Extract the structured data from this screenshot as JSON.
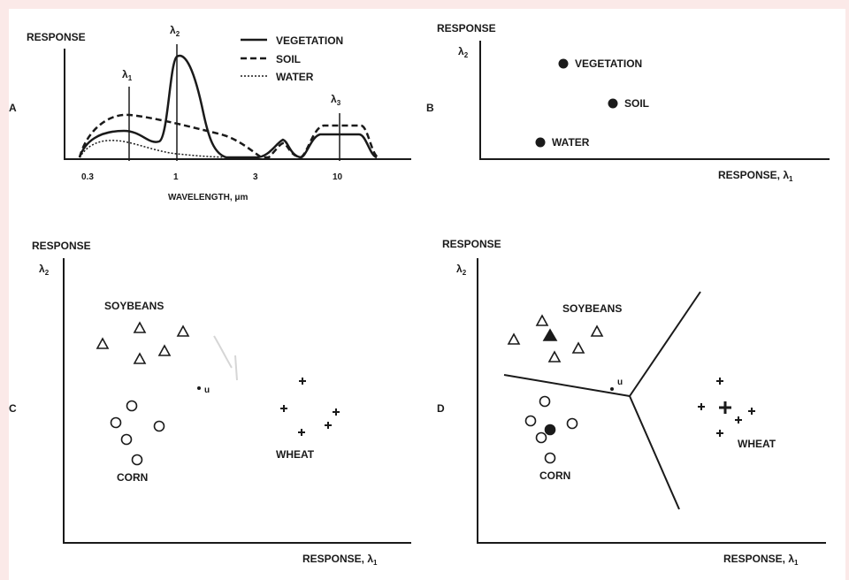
{
  "panels": {
    "a": {
      "letter": "A",
      "ylabel": "RESPONSE",
      "xlabel": "WAVELENGTH, μm",
      "ticks": [
        "0.3",
        "1",
        "3",
        "10"
      ],
      "markers": [
        {
          "symbol": "λ",
          "sub": "1"
        },
        {
          "symbol": "λ",
          "sub": "2"
        },
        {
          "symbol": "λ",
          "sub": "3"
        }
      ],
      "legend": [
        "VEGETATION",
        "SOIL",
        "WATER"
      ]
    },
    "b": {
      "letter": "B",
      "ylabel": "RESPONSE",
      "ysub_symbol": "λ",
      "ysub": "2",
      "xlabel": "RESPONSE, λ",
      "xsub": "1",
      "points": [
        {
          "label": "VEGETATION"
        },
        {
          "label": "SOIL"
        },
        {
          "label": "WATER"
        }
      ]
    },
    "c": {
      "letter": "C",
      "ylabel": "RESPONSE",
      "ysub_symbol": "λ",
      "ysub": "2",
      "xlabel": "RESPONSE, λ",
      "xsub": "1",
      "classes": [
        "SOYBEANS",
        "CORN",
        "WHEAT"
      ],
      "unknown_label": "u"
    },
    "d": {
      "letter": "D",
      "ylabel": "RESPONSE",
      "ysub_symbol": "λ",
      "ysub": "2",
      "xlabel": "RESPONSE, λ",
      "xsub": "1",
      "classes": [
        "SOYBEANS",
        "CORN",
        "WHEAT"
      ],
      "unknown_label": "u"
    }
  }
}
